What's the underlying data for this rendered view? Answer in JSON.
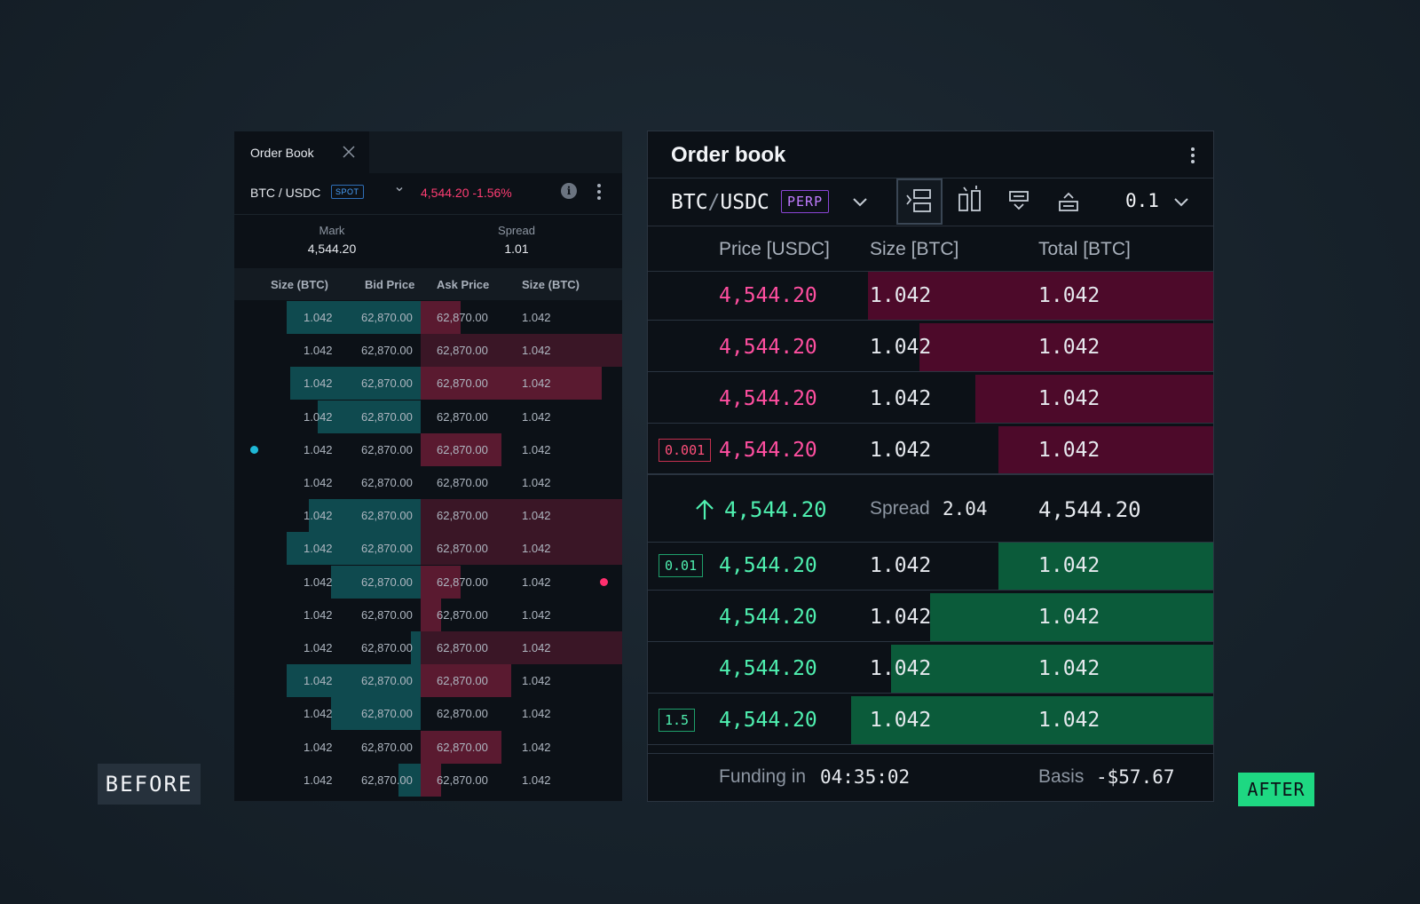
{
  "before": {
    "tab": {
      "label": "Order Book"
    },
    "pair": "BTC / USDC",
    "market_badge": "SPOT",
    "last_price": "4,544.20 -1.56%",
    "info_icon_glyph": "i",
    "stats": {
      "mark_label": "Mark",
      "mark_value": "4,544.20",
      "spread_label": "Spread",
      "spread_value": "1.01"
    },
    "columns": [
      "Size (BTC)",
      "Bid Price",
      "Ask Price",
      "Size (BTC)"
    ],
    "rows": [
      {
        "bid_size": "1.042",
        "bid_price": "62,870.00",
        "ask_price": "62,870.00",
        "ask_size": "1.042"
      },
      {
        "bid_size": "1.042",
        "bid_price": "62,870.00",
        "ask_price": "62,870.00",
        "ask_size": "1.042"
      },
      {
        "bid_size": "1.042",
        "bid_price": "62,870.00",
        "ask_price": "62,870.00",
        "ask_size": "1.042"
      },
      {
        "bid_size": "1.042",
        "bid_price": "62,870.00",
        "ask_price": "62,870.00",
        "ask_size": "1.042"
      },
      {
        "bid_size": "1.042",
        "bid_price": "62,870.00",
        "ask_price": "62,870.00",
        "ask_size": "1.042"
      },
      {
        "bid_size": "1.042",
        "bid_price": "62,870.00",
        "ask_price": "62,870.00",
        "ask_size": "1.042"
      },
      {
        "bid_size": "1.042",
        "bid_price": "62,870.00",
        "ask_price": "62,870.00",
        "ask_size": "1.042"
      },
      {
        "bid_size": "1.042",
        "bid_price": "62,870.00",
        "ask_price": "62,870.00",
        "ask_size": "1.042"
      },
      {
        "bid_size": "1.042",
        "bid_price": "62,870.00",
        "ask_price": "62,870.00",
        "ask_size": "1.042"
      },
      {
        "bid_size": "1.042",
        "bid_price": "62,870.00",
        "ask_price": "62,870.00",
        "ask_size": "1.042"
      },
      {
        "bid_size": "1.042",
        "bid_price": "62,870.00",
        "ask_price": "62,870.00",
        "ask_size": "1.042"
      },
      {
        "bid_size": "1.042",
        "bid_price": "62,870.00",
        "ask_price": "62,870.00",
        "ask_size": "1.042"
      },
      {
        "bid_size": "1.042",
        "bid_price": "62,870.00",
        "ask_price": "62,870.00",
        "ask_size": "1.042"
      },
      {
        "bid_size": "1.042",
        "bid_price": "62,870.00",
        "ask_price": "62,870.00",
        "ask_size": "1.042"
      },
      {
        "bid_size": "1.042",
        "bid_price": "62,870.00",
        "ask_price": "62,870.00",
        "ask_size": "1.042"
      }
    ],
    "colors": {
      "bid_bar": "#0f4a4f",
      "ask_bar": "#5a1a30",
      "bid_dot": "#1fb8d6",
      "ask_dot": "#ff2f6e"
    }
  },
  "after": {
    "title": "Order book",
    "pair_base": "BTC",
    "pair_slash": "/",
    "pair_quote": "USDC",
    "market_badge": "PERP",
    "tick_size": "0.1",
    "columns": {
      "price": "Price [USDC]",
      "size": "Size [BTC]",
      "total": "Total [BTC]"
    },
    "asks": [
      {
        "badge": "",
        "price": "4,544.20",
        "size": "1.042",
        "total": "1.042"
      },
      {
        "badge": "",
        "price": "4,544.20",
        "size": "1.042",
        "total": "1.042"
      },
      {
        "badge": "",
        "price": "4,544.20",
        "size": "1.042",
        "total": "1.042"
      },
      {
        "badge": "0.001",
        "price": "4,544.20",
        "size": "1.042",
        "total": "1.042"
      }
    ],
    "mid": {
      "price": "4,544.20",
      "spread_label": "Spread",
      "spread_value": "2.04",
      "index_price": "4,544.20"
    },
    "bids": [
      {
        "badge": "0.01",
        "price": "4,544.20",
        "size": "1.042",
        "total": "1.042"
      },
      {
        "badge": "",
        "price": "4,544.20",
        "size": "1.042",
        "total": "1.042"
      },
      {
        "badge": "",
        "price": "4,544.20",
        "size": "1.042",
        "total": "1.042"
      },
      {
        "badge": "1.5",
        "price": "4,544.20",
        "size": "1.042",
        "total": "1.042"
      }
    ],
    "footer": {
      "funding_label": "Funding in",
      "funding_value": "04:35:02",
      "basis_label": "Basis",
      "basis_value": "-$57.67"
    },
    "colors": {
      "ask_bar": "#4d0a2a",
      "bid_bar": "#0b5b3a",
      "ask_text": "#ff4fa0",
      "bid_text": "#4ff0b0"
    },
    "view_icons": [
      "stacked-view-icon",
      "split-view-icon",
      "bids-only-icon",
      "asks-only-icon"
    ]
  },
  "labels": {
    "before": "BEFORE",
    "after": "AFTER"
  }
}
